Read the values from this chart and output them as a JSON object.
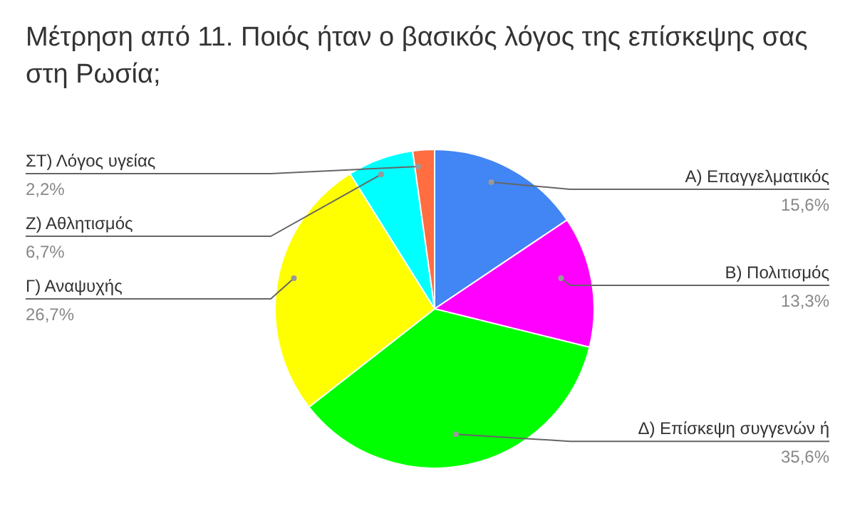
{
  "chart_data": {
    "type": "pie",
    "title": "Μέτρηση από 11. Ποιός ήταν ο βασικός λόγος της επίσκεψης σας στη Ρωσία;",
    "categories": [
      "Α) Επαγγελματικός",
      "Β) Πολιτισμός",
      "Δ) Επίσκεψη συγγενών ή",
      "Γ) Αναψυχής",
      "Ζ) Αθλητισμός",
      "ΣΤ) Λόγος υγείας"
    ],
    "values": [
      15.6,
      13.3,
      35.6,
      26.7,
      6.7,
      2.2
    ],
    "value_labels": [
      "15,6%",
      "13,3%",
      "35,6%",
      "26,7%",
      "6,7%",
      "2,2%"
    ],
    "colors": [
      "#4285f4",
      "#ff00ff",
      "#00ff00",
      "#ffff00",
      "#00ffff",
      "#ff6d40"
    ]
  }
}
